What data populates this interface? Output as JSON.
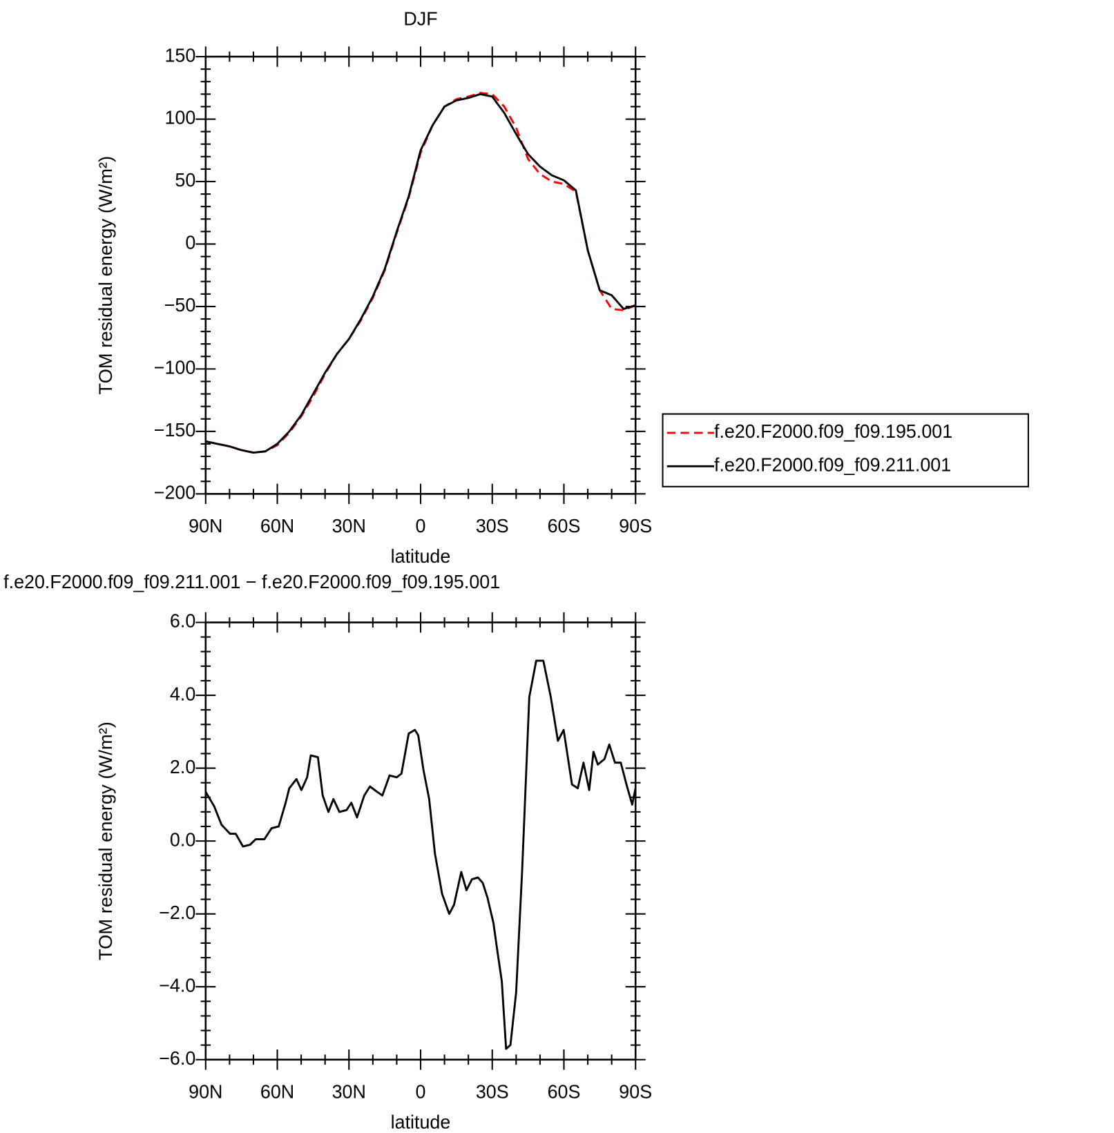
{
  "chart_data": [
    {
      "type": "line",
      "title": "DJF",
      "xlabel": "latitude",
      "ylabel": "TOM residual energy (W/m²)",
      "x": [
        90,
        85,
        80,
        75,
        70,
        65,
        60,
        55,
        50,
        45,
        40,
        35,
        30,
        25,
        20,
        15,
        10,
        5,
        0,
        -5,
        -10,
        -15,
        -20,
        -25,
        -30,
        -35,
        -40,
        -45,
        -50,
        -55,
        -60,
        -65,
        -70,
        -75,
        -80,
        -85,
        -90
      ],
      "xlim": [
        90,
        -90
      ],
      "xticks": [
        {
          "value": 90,
          "label": "90N"
        },
        {
          "value": 60,
          "label": "60N"
        },
        {
          "value": 30,
          "label": "30N"
        },
        0,
        {
          "value": -30,
          "label": "30S"
        },
        {
          "value": -60,
          "label": "60S"
        },
        {
          "value": -90,
          "label": "90S"
        }
      ],
      "ylim": [
        -200,
        150
      ],
      "yticks": [
        {
          "value": -200,
          "label": "−200"
        },
        {
          "value": -150,
          "label": "−150"
        },
        {
          "value": -100,
          "label": "−100"
        },
        {
          "value": -50,
          "label": "−50"
        },
        0,
        50,
        100,
        150
      ],
      "legend": "right",
      "series": [
        {
          "name": "f.e20.F2000.f09_f09.195.001",
          "color": "#ff0000",
          "dash": true,
          "values": [
            -158,
            -160,
            -162,
            -165,
            -167,
            -166,
            -161,
            -151,
            -138,
            -122,
            -104,
            -88,
            -76,
            -61,
            -43,
            -21,
            9,
            37,
            73,
            95,
            110,
            116,
            118,
            121,
            120,
            110,
            93,
            68,
            56,
            50,
            48,
            42,
            -5,
            -37,
            -52,
            -53,
            -49
          ]
        },
        {
          "name": "f.e20.F2000.f09_f09.211.001",
          "color": "#000000",
          "dash": false,
          "values": [
            -158,
            -160,
            -162,
            -165,
            -167,
            -166,
            -160,
            -150,
            -137,
            -120,
            -103,
            -88,
            -76,
            -60,
            -42,
            -20,
            10,
            38,
            75,
            95,
            110,
            115,
            117,
            120,
            118,
            105,
            88,
            72,
            62,
            55,
            51,
            43,
            -5,
            -37,
            -41,
            -52,
            -49
          ]
        }
      ]
    },
    {
      "type": "line",
      "title": "f.e20.F2000.f09_f09.211.001 − f.e20.F2000.f09_f09.195.001",
      "xlabel": "latitude",
      "ylabel": "TOM residual energy (W/m²)",
      "x": [
        90,
        86.4,
        83.4,
        79.8,
        77.4,
        74.4,
        71.4,
        69,
        65.4,
        62.4,
        59.4,
        56.5,
        55,
        52,
        49.9,
        47.5,
        46,
        43,
        41,
        38.6,
        36.5,
        34,
        31,
        29,
        26.6,
        23.6,
        21.2,
        18.2,
        16,
        13,
        10,
        8,
        5,
        2.4,
        1,
        -1.2,
        -3.6,
        -6,
        -9,
        -12,
        -14,
        -17,
        -19.2,
        -21.5,
        -24,
        -26,
        -28,
        -30.5,
        -32,
        -34,
        -35.8,
        -37.6,
        -40,
        -42.5,
        -45.5,
        -48.4,
        -51.4,
        -54.5,
        -57.5,
        -59.9,
        -63.4,
        -65.8,
        -68.2,
        -70.6,
        -72.4,
        -74.2,
        -77,
        -79,
        -81.4,
        -83.8,
        -86.2,
        -88.6,
        -90
      ],
      "xlim": [
        90,
        -90
      ],
      "xticks": [
        {
          "value": 90,
          "label": "90N"
        },
        {
          "value": 60,
          "label": "60N"
        },
        {
          "value": 30,
          "label": "30N"
        },
        0,
        {
          "value": -30,
          "label": "30S"
        },
        {
          "value": -60,
          "label": "60S"
        },
        {
          "value": -90,
          "label": "90S"
        }
      ],
      "ylim": [
        -6,
        6
      ],
      "yticks": [
        {
          "value": -6,
          "label": "−6.0"
        },
        {
          "value": -4,
          "label": "−4.0"
        },
        {
          "value": -2,
          "label": "−2.0"
        },
        {
          "value": 0,
          "label": "0.0"
        },
        {
          "value": 2,
          "label": "2.0"
        },
        {
          "value": 4,
          "label": "4.0"
        },
        {
          "value": 6,
          "label": "6.0"
        }
      ],
      "series": [
        {
          "color": "#000000",
          "dash": false,
          "values": [
            1.35,
            0.95,
            0.45,
            0.2,
            0.2,
            -0.15,
            -0.1,
            0.05,
            0.05,
            0.35,
            0.4,
            1.05,
            1.45,
            1.7,
            1.4,
            1.75,
            2.35,
            2.3,
            1.25,
            0.8,
            1.15,
            0.8,
            0.85,
            1.05,
            0.65,
            1.25,
            1.5,
            1.35,
            1.25,
            1.8,
            1.75,
            1.85,
            2.95,
            3.05,
            2.9,
            1.95,
            1.15,
            -0.35,
            -1.45,
            -2.0,
            -1.75,
            -0.85,
            -1.35,
            -1.05,
            -1.0,
            -1.15,
            -1.55,
            -2.25,
            -2.95,
            -3.85,
            -5.7,
            -5.6,
            -4.15,
            -0.85,
            3.95,
            4.95,
            4.95,
            3.95,
            2.75,
            3.05,
            1.55,
            1.45,
            2.15,
            1.4,
            2.45,
            2.1,
            2.25,
            2.65,
            2.15,
            2.15,
            1.55,
            1.0,
            1.45
          ]
        }
      ]
    }
  ]
}
